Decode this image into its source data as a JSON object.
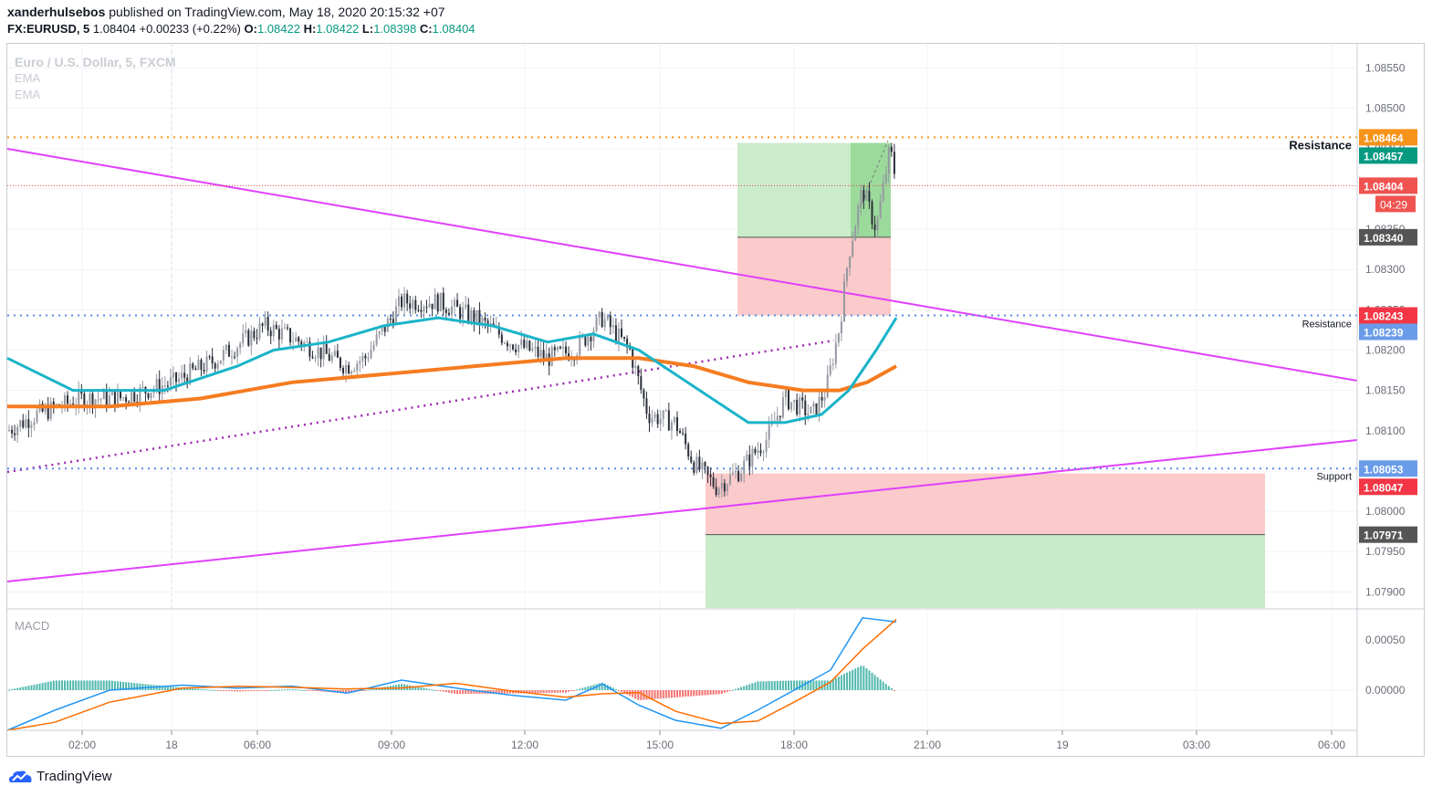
{
  "header": {
    "author": "xanderhulsebos",
    "published_text": "published on TradingView.com, May 18, 2020 20:15:32 +07",
    "symbol": "FX:EURUSD, 5",
    "last": "1.08404",
    "change": "+0.00233 (+0.22%)",
    "o_label": "O:",
    "o": "1.08422",
    "h_label": "H:",
    "h": "1.08422",
    "l_label": "L:",
    "l": "1.08398",
    "c_label": "C:",
    "c": "1.08404"
  },
  "legend": {
    "title": "Euro / U.S. Dollar, 5, FXCM",
    "ema1": "EMA",
    "ema2": "EMA",
    "macd": "MACD"
  },
  "brand": {
    "name": "TradingView"
  },
  "chart_data": {
    "type": "candlestick",
    "symbol": "EURUSD",
    "timeframe": "5",
    "ylim": [
      1.0788,
      1.0858
    ],
    "y_ticks": [
      1.0855,
      1.085,
      1.0845,
      1.084,
      1.0835,
      1.083,
      1.0825,
      1.082,
      1.0815,
      1.081,
      1.0805,
      1.08,
      1.0795,
      1.079
    ],
    "y_tick_labels": [
      "1.08550",
      "1.08500",
      "1.08450",
      "1.08400",
      "1.08350",
      "1.08300",
      "1.08250",
      "1.08200",
      "1.08150",
      "1.08100",
      "1.08050",
      "1.08000",
      "1.07950",
      "1.07900"
    ],
    "x_ticks": [
      "02:00",
      "18",
      "06:00",
      "09:00",
      "12:00",
      "15:00",
      "18:00",
      "21:00",
      "19",
      "03:00",
      "06:00"
    ],
    "price_labels": [
      {
        "value": 1.08464,
        "text": "1.08464",
        "color": "#f7931a"
      },
      {
        "value": 1.08457,
        "text": "1.08457",
        "color": "#089981"
      },
      {
        "value": 1.08404,
        "text": "1.08404",
        "color": "#ef5350"
      },
      {
        "value": 1.0834,
        "text": "1.08340",
        "color": "#555555"
      },
      {
        "value": 1.08243,
        "text": "1.08243",
        "color": "#f23645"
      },
      {
        "value": 1.08239,
        "text": "1.08239",
        "color": "#6a9be8"
      },
      {
        "value": 1.08053,
        "text": "1.08053",
        "color": "#6a9be8"
      },
      {
        "value": 1.08047,
        "text": "1.08047",
        "color": "#f23645"
      },
      {
        "value": 1.07971,
        "text": "1.07971",
        "color": "#555555"
      }
    ],
    "countdown": "04:29",
    "horizontal_lines": [
      {
        "value": 1.08464,
        "style": "dotted",
        "color": "#f7931a"
      },
      {
        "value": 1.08404,
        "style": "dotted",
        "color": "#e04545"
      },
      {
        "value": 1.08243,
        "style": "dotted",
        "color": "#5b8be0"
      },
      {
        "value": 1.08053,
        "style": "dotted",
        "color": "#5b8be0"
      }
    ],
    "annotations": [
      {
        "text": "Resistance",
        "value": 1.08457,
        "bold": true
      },
      {
        "text": "Resistance",
        "value": 1.08239,
        "bold": false
      },
      {
        "text": "Support",
        "value": 1.08047,
        "bold": false
      }
    ],
    "macd_ticks": [
      "0.00050",
      "0.00000"
    ],
    "macd_range": [
      -0.0004,
      0.0008
    ]
  }
}
